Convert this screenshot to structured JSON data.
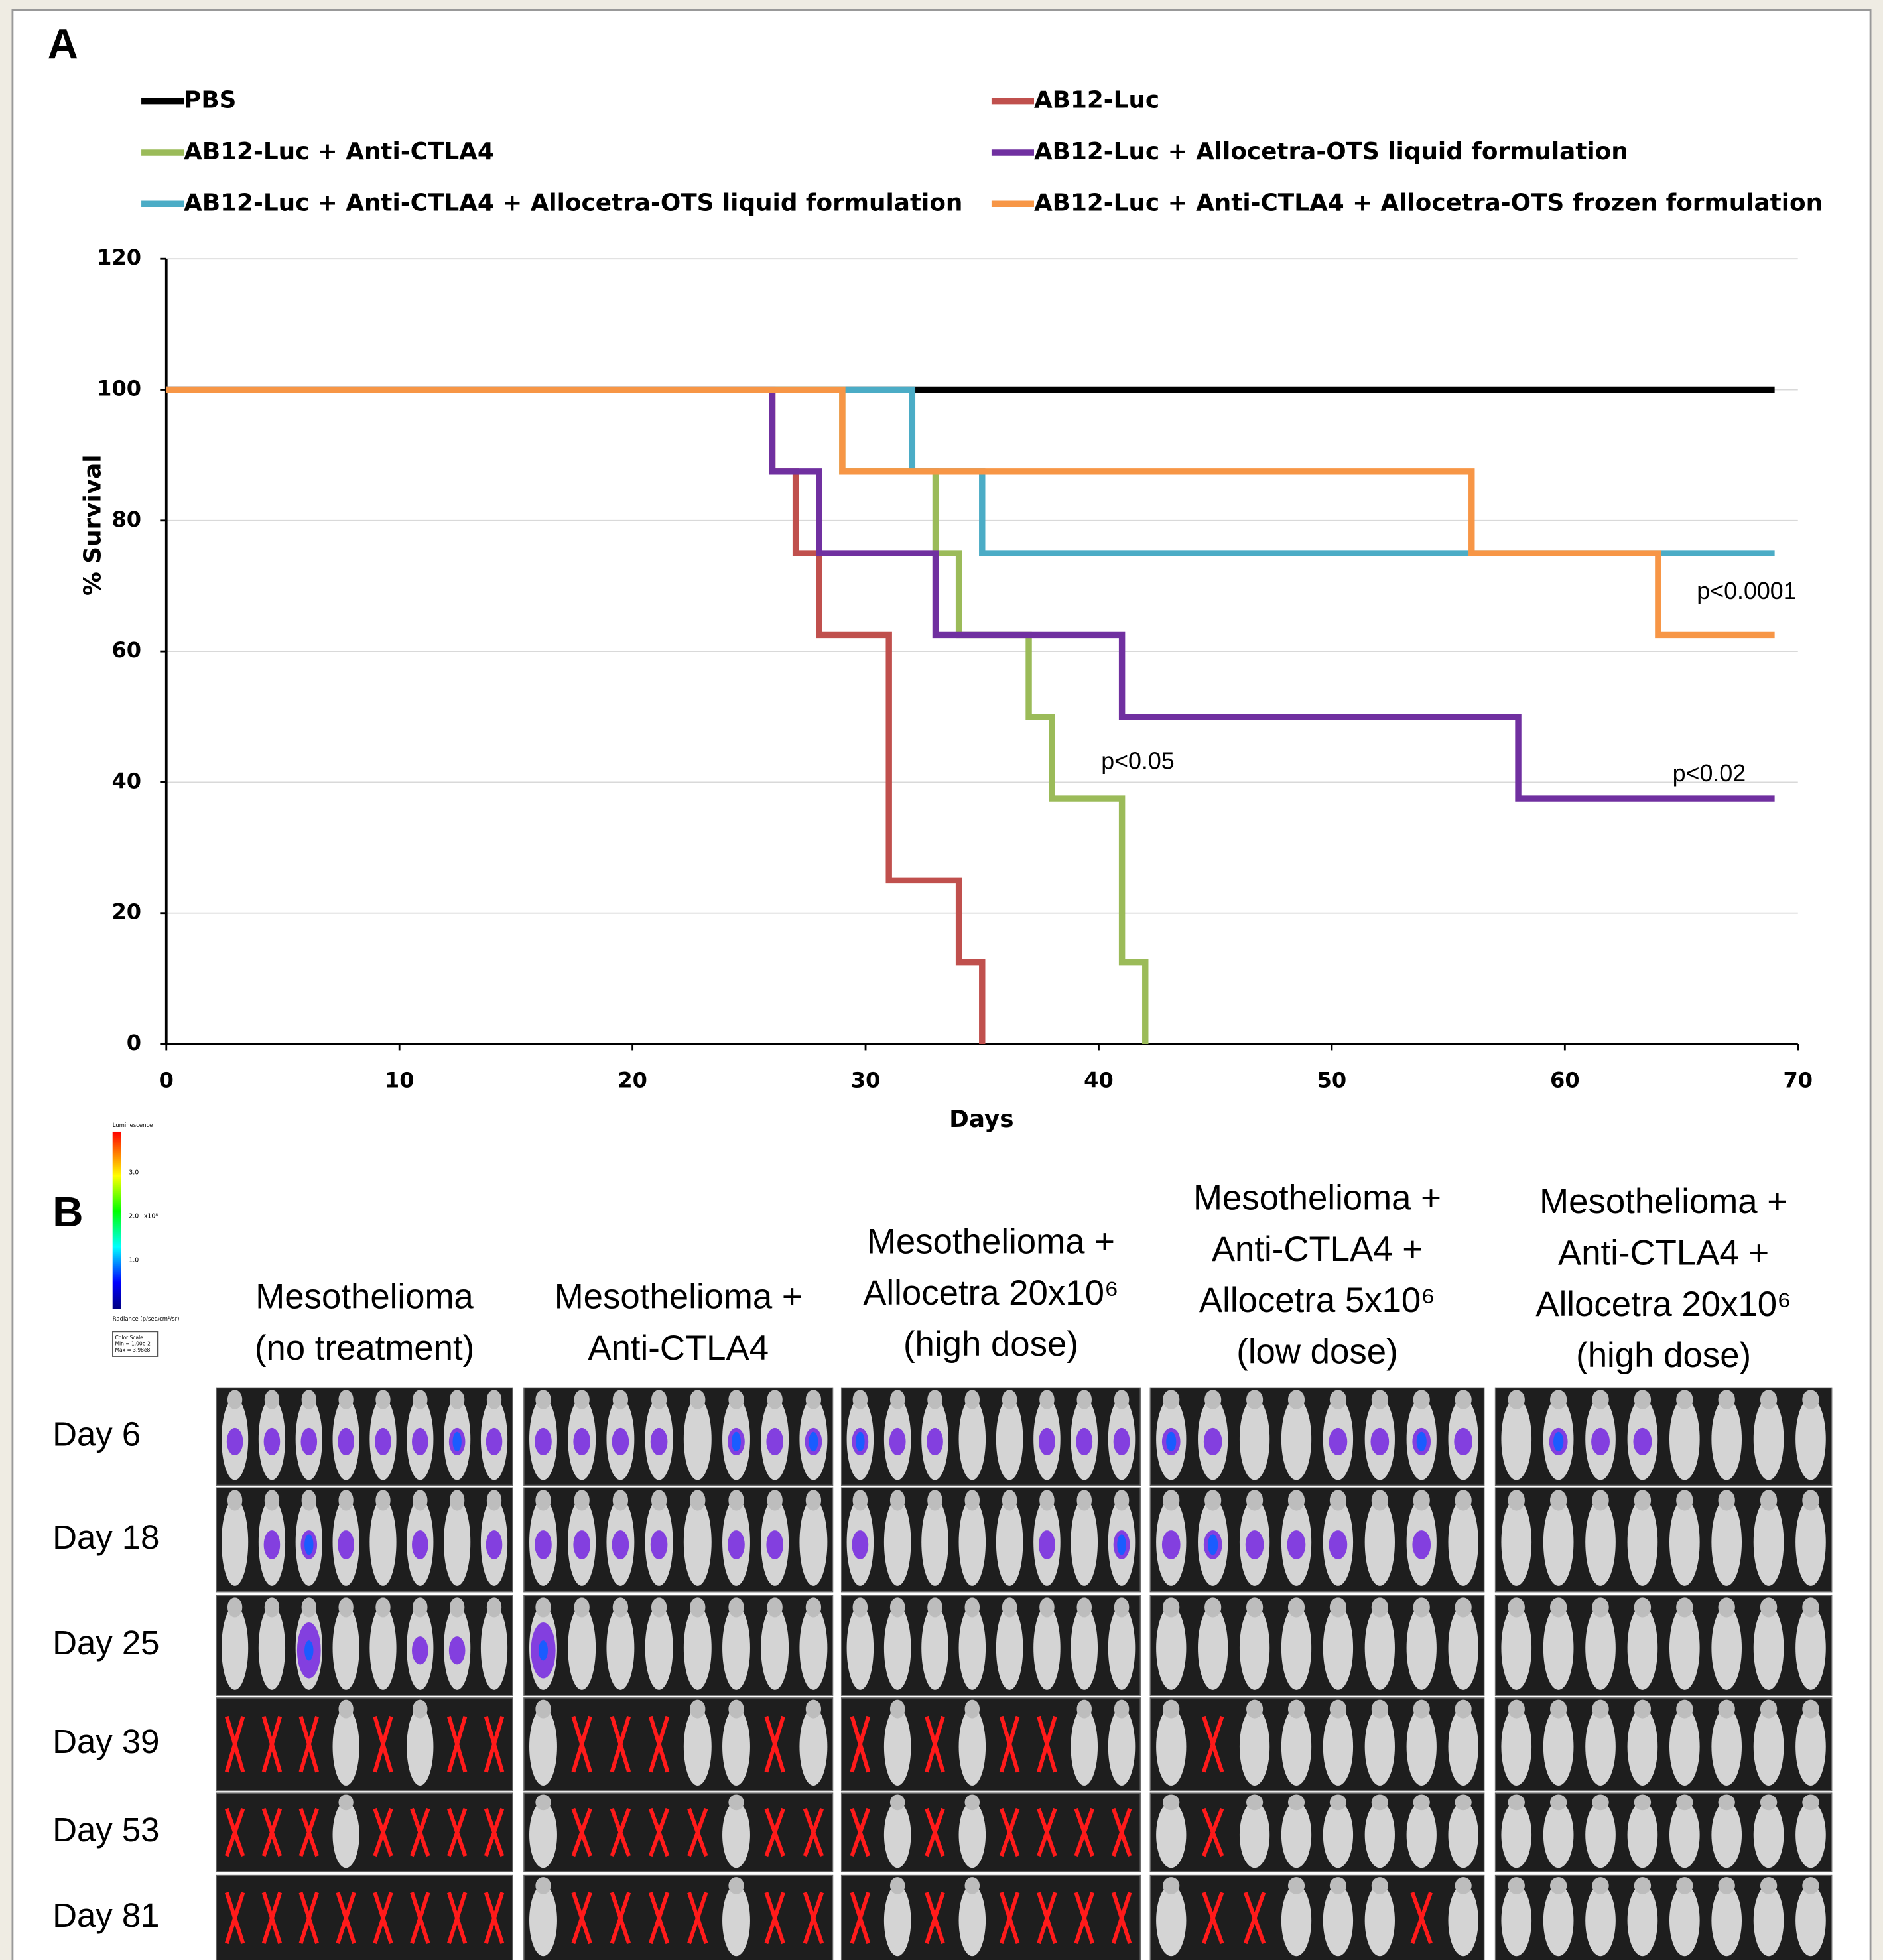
{
  "panel_a_label": "A",
  "chart_data": {
    "type": "line",
    "ylabel": "% Survival",
    "xlabel": "Days",
    "xlim": [
      0,
      70
    ],
    "xticks": [
      0,
      10,
      20,
      30,
      40,
      50,
      60,
      70
    ],
    "ylim": [
      0,
      120
    ],
    "yticks": [
      0,
      20,
      40,
      60,
      80,
      100,
      120
    ],
    "grid": true,
    "series": [
      {
        "name": "PBS",
        "color": "#000000",
        "x": [
          0,
          69
        ],
        "values": [
          100,
          100
        ]
      },
      {
        "name": "AB12-Luc",
        "color": "#c0504d",
        "x": [
          0,
          26,
          26,
          27,
          27,
          28,
          28,
          31,
          31,
          34,
          34,
          35,
          35
        ],
        "values": [
          100,
          100,
          87.5,
          87.5,
          75,
          75,
          62.5,
          62.5,
          25,
          25,
          12.5,
          12.5,
          0
        ]
      },
      {
        "name": "AB12-Luc + Anti-CTLA4",
        "color": "#9bbb59",
        "x": [
          0,
          29,
          29,
          33,
          33,
          34,
          34,
          37,
          37,
          38,
          38,
          41,
          41,
          42,
          42
        ],
        "values": [
          100,
          100,
          87.5,
          87.5,
          75,
          75,
          62.5,
          62.5,
          50,
          50,
          37.5,
          37.5,
          12.5,
          12.5,
          0
        ]
      },
      {
        "name": "AB12-Luc + Allocetra-OTS liquid formulation",
        "color": "#7030a0",
        "x": [
          0,
          26,
          26,
          28,
          28,
          33,
          33,
          41,
          41,
          58,
          58,
          69
        ],
        "values": [
          100,
          100,
          87.5,
          87.5,
          75,
          75,
          62.5,
          62.5,
          50,
          50,
          37.5,
          37.5
        ]
      },
      {
        "name": "AB12-Luc + Anti-CTLA4 + Allocetra-OTS liquid formulation",
        "color": "#4bacc6",
        "x": [
          0,
          32,
          32,
          35,
          35,
          69
        ],
        "values": [
          100,
          100,
          87.5,
          87.5,
          75,
          75
        ]
      },
      {
        "name": "AB12-Luc + Anti-CTLA4 + Allocetra-OTS frozen formulation",
        "color": "#f79646",
        "x": [
          0,
          29,
          29,
          56,
          56,
          64,
          64,
          69
        ],
        "values": [
          100,
          100,
          87.5,
          87.5,
          75,
          75,
          62.5,
          62.5
        ]
      }
    ],
    "annotations": [
      "p<0.0001",
      "p<0.05",
      "p<0.02"
    ]
  },
  "panel_b": {
    "label": "B",
    "columns": [
      [
        "Mesothelioma",
        "(no treatment)"
      ],
      [
        "Mesothelioma +",
        "Anti-CTLA4"
      ],
      [
        "Mesothelioma +",
        "Allocetra 20x10⁶",
        "(high dose)"
      ],
      [
        "Mesothelioma +",
        "Anti-CTLA4 +",
        "Allocetra 5x10⁶",
        "(low dose)"
      ],
      [
        "Mesothelioma +",
        "Anti-CTLA4 +",
        "Allocetra 20x10⁶",
        "(high dose)"
      ]
    ],
    "rows": [
      "Day 6",
      "Day 18",
      "Day 25",
      "Day 39",
      "Day 53",
      "Day 81"
    ],
    "colorbar": {
      "title": "Luminescence",
      "ticks": [
        "3.0",
        "2.0",
        "1.0"
      ],
      "unit": "x10⁸",
      "label": "Radiance (p/sec/cm²/sr)",
      "scale": [
        "Color Scale",
        "Min = 1.00e-2",
        "Max = 3.98e8"
      ]
    }
  }
}
